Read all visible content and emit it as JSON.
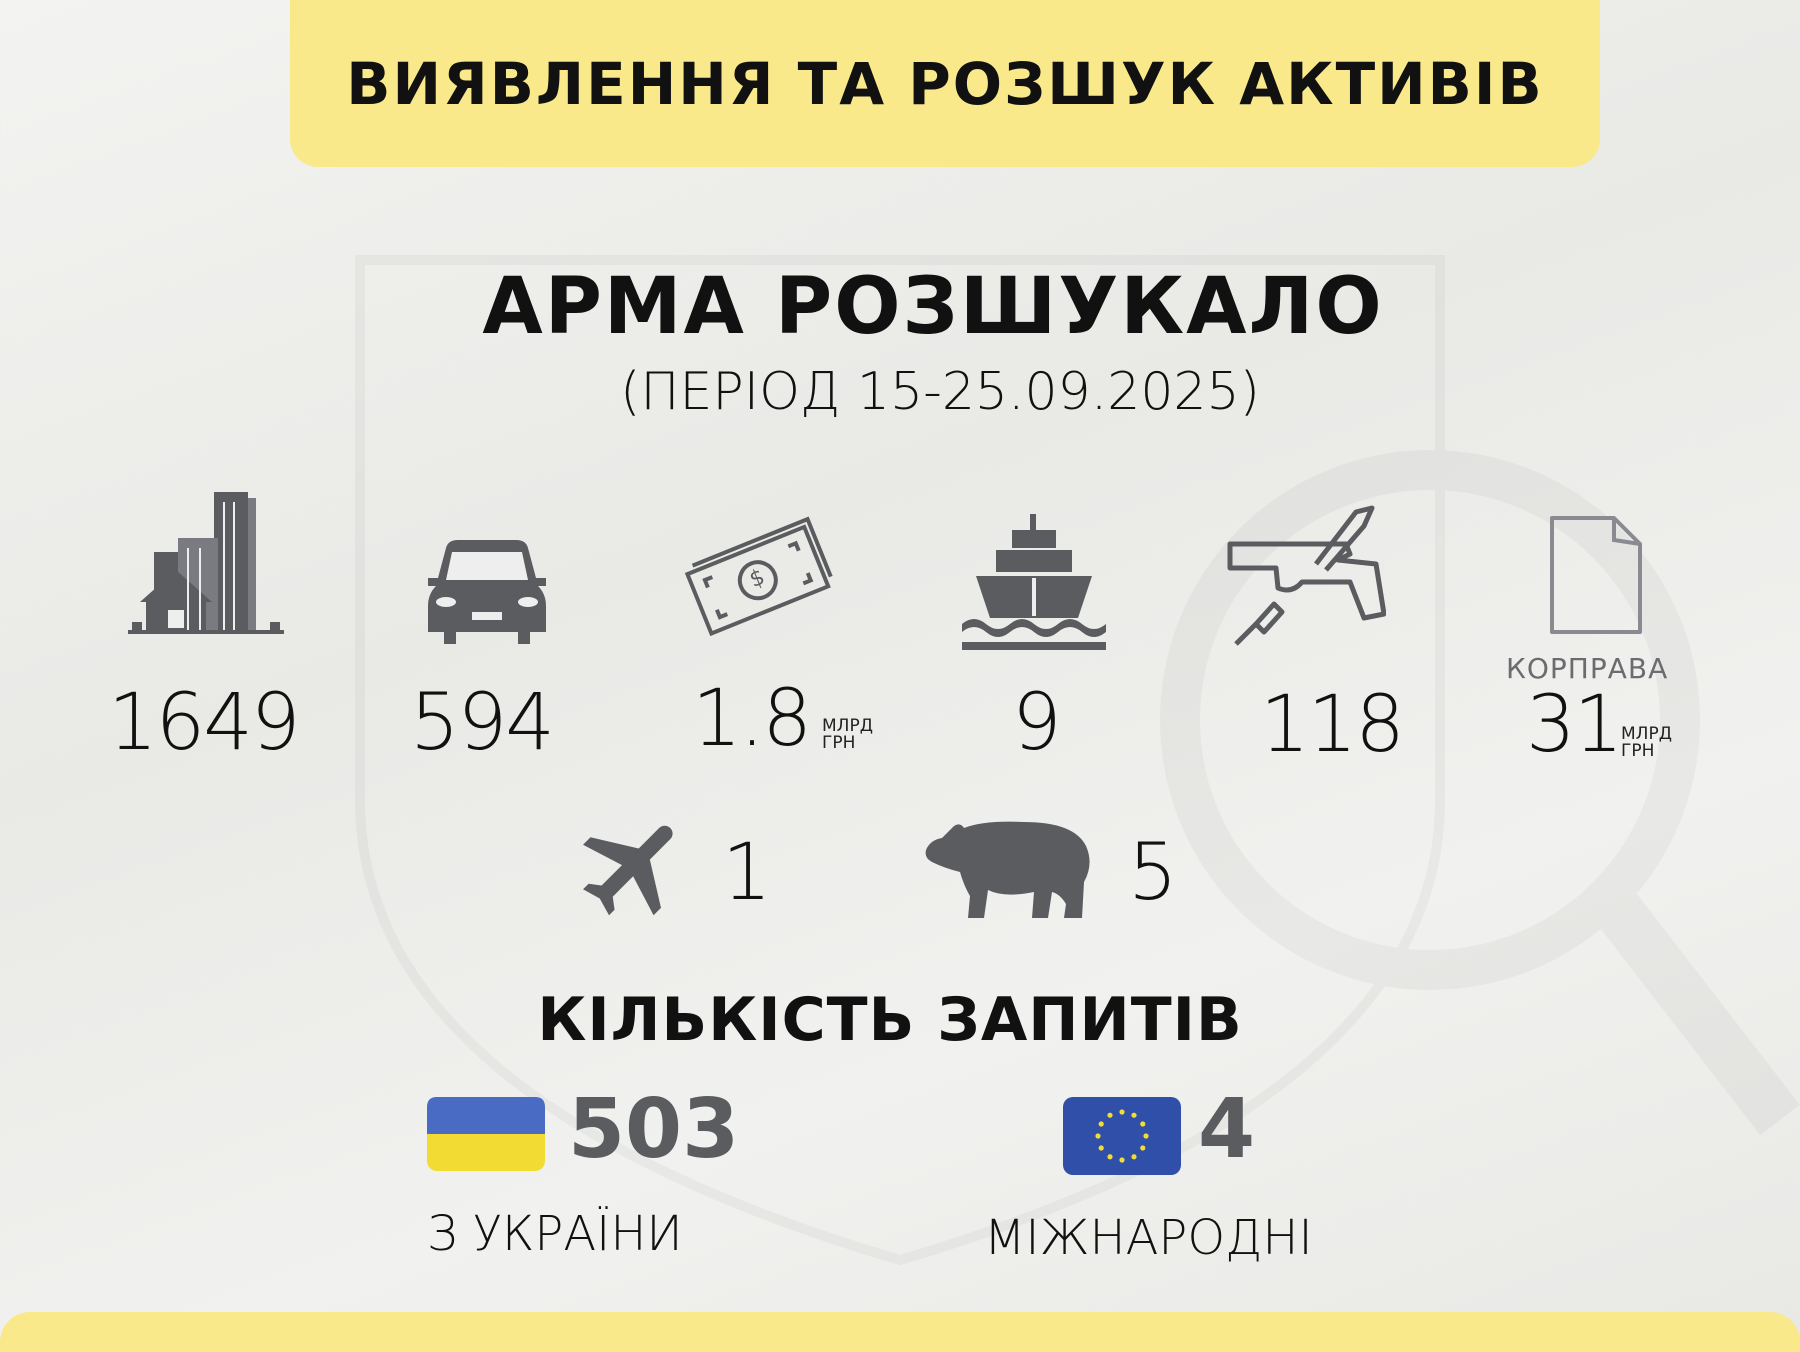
{
  "header": {
    "title": "ВИЯВЛЕННЯ ТА РОЗШУК АКТИВІВ"
  },
  "main": {
    "title": "АРМА РОЗШУКАЛО",
    "period": "(ПЕРІОД 15-25.09.2025)",
    "assets": [
      {
        "icon": "real-estate-icon",
        "value": "1649"
      },
      {
        "icon": "car-icon",
        "value": "594"
      },
      {
        "icon": "money-icon",
        "value": "1.8",
        "unit_line1": "МЛРД",
        "unit_line2": "ГРН"
      },
      {
        "icon": "ship-icon",
        "value": "9"
      },
      {
        "icon": "weapon-icon",
        "value": "118"
      },
      {
        "icon": "document-icon",
        "label": "КОРПРАВА",
        "value": "31",
        "unit_line1": "МЛРД",
        "unit_line2": "ГРН"
      },
      {
        "icon": "airplane-icon",
        "value": "1"
      },
      {
        "icon": "bear-icon",
        "value": "5"
      }
    ]
  },
  "requests": {
    "title": "КІЛЬКІСТЬ ЗАПИТІВ",
    "domestic": {
      "icon": "ukraine-flag-icon",
      "value": "503",
      "label": "З УКРАЇНИ"
    },
    "international": {
      "icon": "eu-flag-icon",
      "value": "4",
      "label": "МІЖНАРОДНІ"
    }
  },
  "colors": {
    "accent_yellow": "#f9e98a",
    "icon_grey": "#5b5c60",
    "flag_blue": "#4a6bc4",
    "flag_yellow": "#f2dc34",
    "eu_blue": "#2f4fa8"
  }
}
